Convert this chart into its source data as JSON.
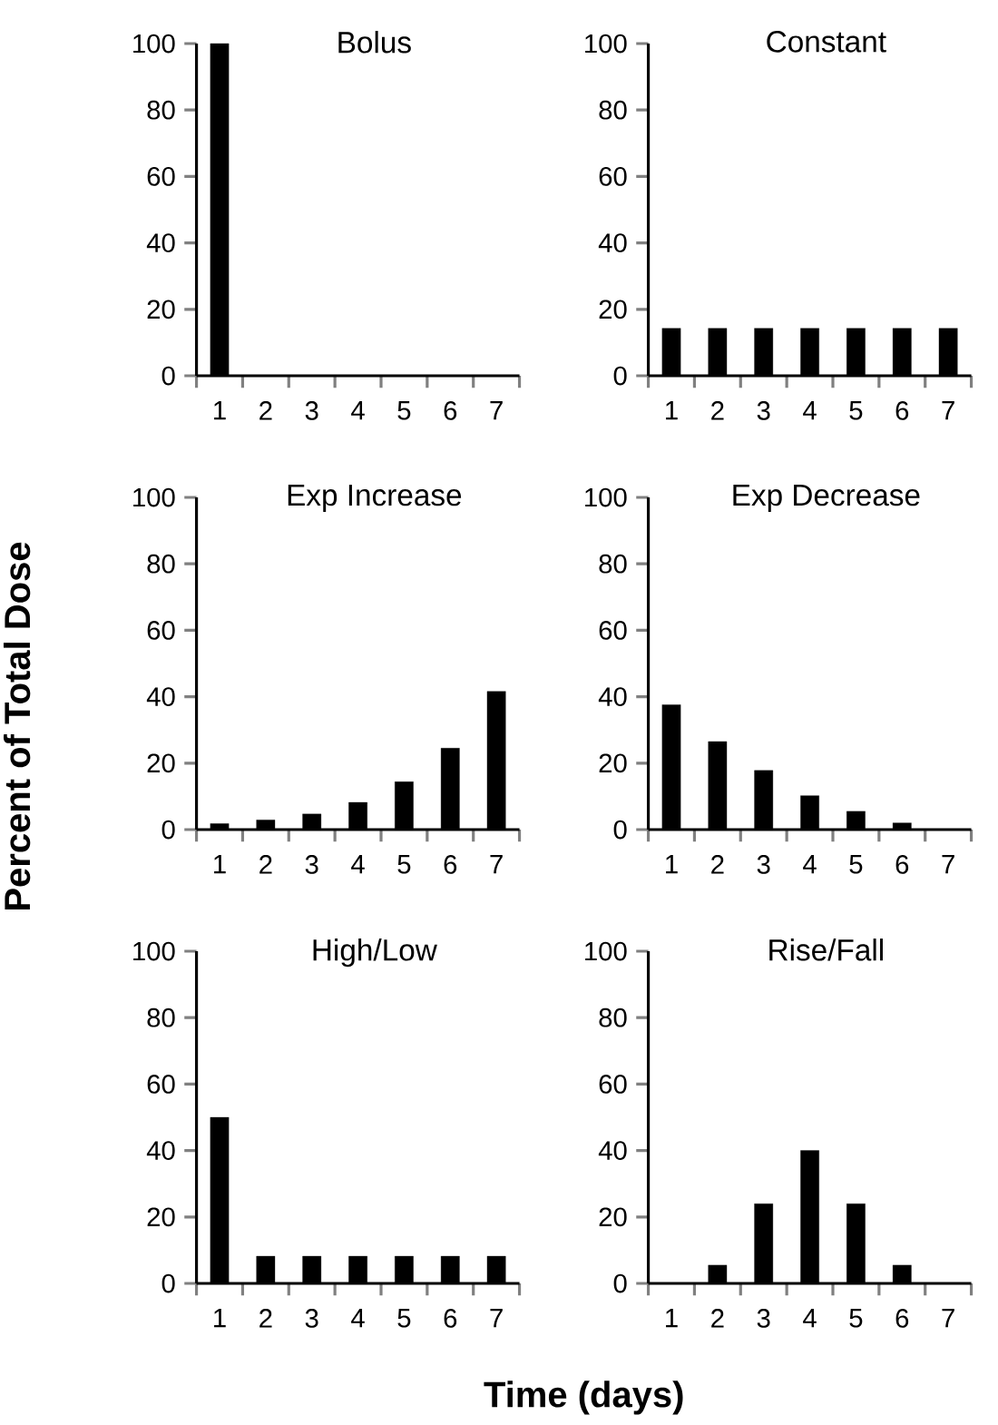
{
  "chart_data": [
    {
      "type": "bar",
      "title": "Bolus",
      "categories": [
        "1",
        "2",
        "3",
        "4",
        "5",
        "6",
        "7"
      ],
      "values": [
        100,
        0,
        0,
        0,
        0,
        0,
        0
      ],
      "color": "#000000",
      "ylim": [
        0,
        100
      ],
      "yticks": [
        0,
        20,
        40,
        60,
        80,
        100
      ]
    },
    {
      "type": "bar",
      "title": "Constant",
      "categories": [
        "1",
        "2",
        "3",
        "4",
        "5",
        "6",
        "7"
      ],
      "values": [
        14.3,
        14.3,
        14.3,
        14.3,
        14.3,
        14.3,
        14.3
      ],
      "color": "#000000",
      "ylim": [
        0,
        100
      ],
      "yticks": [
        0,
        20,
        40,
        60,
        80,
        100
      ]
    },
    {
      "type": "bar",
      "title": "Exp Increase",
      "ylabel": "Percent of Total Dose",
      "categories": [
        "1",
        "2",
        "3",
        "4",
        "5",
        "6",
        "7"
      ],
      "values": [
        1.8,
        2.9,
        4.7,
        8.2,
        14.4,
        24.5,
        41.6
      ],
      "color": "#000000",
      "ylim": [
        0,
        100
      ],
      "yticks": [
        0,
        20,
        40,
        60,
        80,
        100
      ]
    },
    {
      "type": "bar",
      "title": "Exp Decrease",
      "categories": [
        "1",
        "2",
        "3",
        "4",
        "5",
        "6",
        "7"
      ],
      "values": [
        37.6,
        26.5,
        17.8,
        10.2,
        5.5,
        2,
        0
      ],
      "color": "#000000",
      "ylim": [
        0,
        100
      ],
      "yticks": [
        0,
        20,
        40,
        60,
        80,
        100
      ]
    },
    {
      "type": "bar",
      "title": "High/Low",
      "xlabel": "Time (days)",
      "categories": [
        "1",
        "2",
        "3",
        "4",
        "5",
        "6",
        "7"
      ],
      "values": [
        50,
        8.2,
        8.2,
        8.2,
        8.2,
        8.2,
        8.2
      ],
      "color": "#000000",
      "ylim": [
        0,
        100
      ],
      "yticks": [
        0,
        20,
        40,
        60,
        80,
        100
      ]
    },
    {
      "type": "bar",
      "title": "Rise/Fall",
      "categories": [
        "1",
        "2",
        "3",
        "4",
        "5",
        "6",
        "7"
      ],
      "values": [
        0,
        5.5,
        24,
        40,
        24,
        5.5,
        0
      ],
      "color": "#000000",
      "ylim": [
        0,
        100
      ],
      "yticks": [
        0,
        20,
        40,
        60,
        80,
        100
      ]
    }
  ]
}
